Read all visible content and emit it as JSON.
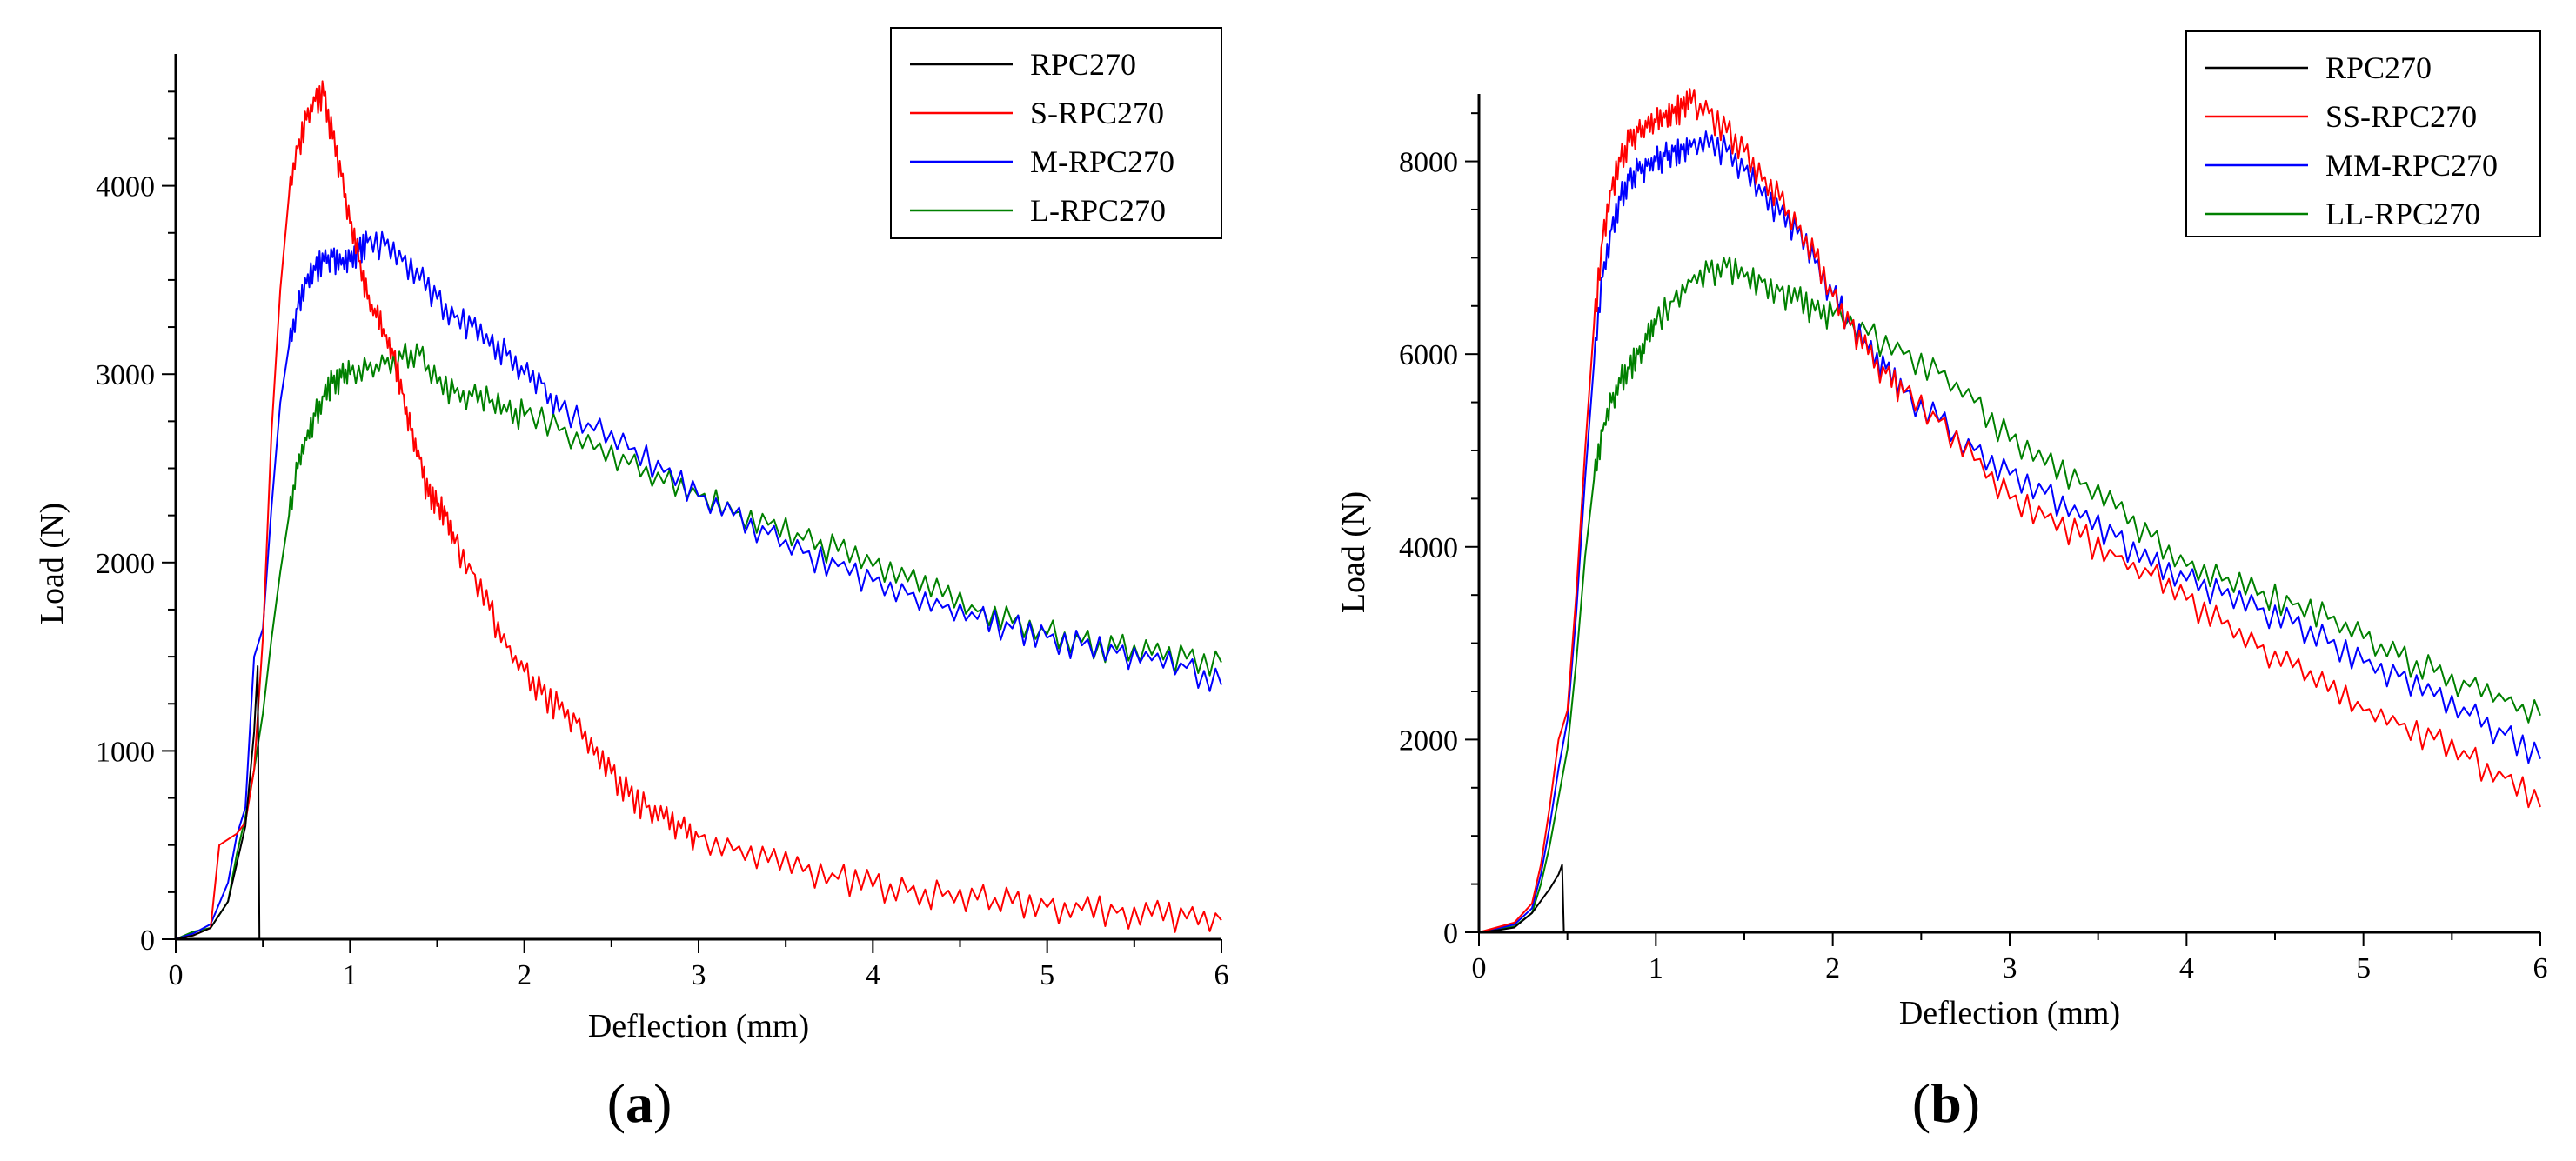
{
  "figure": {
    "panels": [
      "a",
      "b"
    ]
  },
  "chart_data": [
    {
      "type": "line",
      "panel_label": "a",
      "xlabel": "Deflection (mm)",
      "ylabel": "Load (N)",
      "xlim": [
        0,
        6
      ],
      "ylim": [
        0,
        4700
      ],
      "xticks": [
        0,
        1,
        2,
        3,
        4,
        5,
        6
      ],
      "yticks": [
        0,
        1000,
        2000,
        3000,
        4000
      ],
      "grid": false,
      "legend_position": "top-right",
      "series": [
        {
          "name": "RPC270",
          "color": "#000000",
          "x": [
            0,
            0.1,
            0.2,
            0.3,
            0.4,
            0.45,
            0.47,
            0.48,
            0.5
          ],
          "y": [
            0,
            20,
            60,
            200,
            600,
            1100,
            1450,
            0,
            0
          ]
        },
        {
          "name": "S-RPC270",
          "color": "#ff0000",
          "x": [
            0,
            0.1,
            0.2,
            0.25,
            0.3,
            0.35,
            0.4,
            0.45,
            0.5,
            0.55,
            0.6,
            0.65,
            0.7,
            0.75,
            0.8,
            0.85,
            0.9,
            0.95,
            1.0,
            1.05,
            1.1,
            1.15,
            1.2,
            1.25,
            1.3,
            1.35,
            1.4,
            1.45,
            1.5,
            1.55,
            1.6,
            1.7,
            1.8,
            1.9,
            2.0,
            2.1,
            2.2,
            2.3,
            2.4,
            2.5,
            2.6,
            2.7,
            2.8,
            2.9,
            3.0,
            3.2,
            3.4,
            3.6,
            3.8,
            4.0,
            4.2,
            4.4,
            4.6,
            4.8,
            5.0,
            5.2,
            5.4,
            5.6,
            5.8,
            6.0
          ],
          "y": [
            0,
            20,
            60,
            500,
            530,
            560,
            620,
            900,
            1600,
            2700,
            3450,
            3950,
            4200,
            4350,
            4450,
            4480,
            4250,
            4050,
            3800,
            3600,
            3400,
            3300,
            3200,
            3100,
            2900,
            2700,
            2550,
            2350,
            2300,
            2250,
            2100,
            1950,
            1750,
            1550,
            1420,
            1300,
            1220,
            1150,
            980,
            880,
            760,
            700,
            640,
            590,
            540,
            470,
            410,
            360,
            320,
            280,
            250,
            230,
            210,
            190,
            170,
            155,
            140,
            125,
            110,
            100
          ]
        },
        {
          "name": "M-RPC270",
          "color": "#0000ff",
          "x": [
            0,
            0.1,
            0.2,
            0.3,
            0.35,
            0.4,
            0.45,
            0.5,
            0.55,
            0.6,
            0.65,
            0.7,
            0.75,
            0.8,
            0.85,
            0.9,
            0.95,
            1.0,
            1.05,
            1.1,
            1.2,
            1.3,
            1.4,
            1.5,
            1.6,
            1.7,
            1.8,
            1.9,
            2.0,
            2.1,
            2.2,
            2.4,
            2.6,
            2.8,
            3.0,
            3.2,
            3.4,
            3.6,
            3.8,
            4.0,
            4.2,
            4.4,
            4.6,
            4.8,
            5.0,
            5.2,
            5.4,
            5.6,
            5.8,
            6.0
          ],
          "y": [
            0,
            30,
            80,
            300,
            550,
            700,
            1500,
            1650,
            2300,
            2850,
            3150,
            3350,
            3480,
            3550,
            3600,
            3620,
            3580,
            3600,
            3650,
            3700,
            3680,
            3600,
            3500,
            3400,
            3300,
            3250,
            3150,
            3100,
            3000,
            2950,
            2800,
            2700,
            2600,
            2480,
            2350,
            2250,
            2150,
            2050,
            1980,
            1900,
            1830,
            1760,
            1700,
            1650,
            1600,
            1560,
            1520,
            1480,
            1440,
            1350
          ]
        },
        {
          "name": "L-RPC270",
          "color": "#008000",
          "x": [
            0,
            0.1,
            0.2,
            0.3,
            0.35,
            0.4,
            0.45,
            0.5,
            0.55,
            0.6,
            0.65,
            0.7,
            0.75,
            0.8,
            0.85,
            0.9,
            0.95,
            1.0,
            1.1,
            1.2,
            1.3,
            1.4,
            1.5,
            1.6,
            1.7,
            1.8,
            1.9,
            2.0,
            2.2,
            2.4,
            2.6,
            2.8,
            3.0,
            3.2,
            3.4,
            3.6,
            3.8,
            4.0,
            4.2,
            4.4,
            4.6,
            4.8,
            5.0,
            5.2,
            5.4,
            5.6,
            5.8,
            6.0
          ],
          "y": [
            0,
            40,
            60,
            200,
            450,
            650,
            900,
            1200,
            1600,
            1950,
            2250,
            2500,
            2650,
            2780,
            2880,
            2950,
            2980,
            3000,
            3020,
            3050,
            3080,
            3100,
            2950,
            2900,
            2880,
            2850,
            2800,
            2780,
            2700,
            2600,
            2520,
            2420,
            2350,
            2260,
            2200,
            2120,
            2060,
            1980,
            1900,
            1820,
            1740,
            1680,
            1620,
            1580,
            1540,
            1510,
            1490,
            1470
          ]
        }
      ]
    },
    {
      "type": "line",
      "panel_label": "b",
      "xlabel": "Deflection (mm)",
      "ylabel": "Load (N)",
      "xlim": [
        0,
        6
      ],
      "ylim": [
        0,
        8700
      ],
      "xticks": [
        0,
        1,
        2,
        3,
        4,
        5,
        6
      ],
      "yticks": [
        0,
        2000,
        4000,
        6000,
        8000
      ],
      "grid": false,
      "legend_position": "top-right",
      "series": [
        {
          "name": "RPC270",
          "color": "#000000",
          "x": [
            0,
            0.1,
            0.2,
            0.3,
            0.4,
            0.45,
            0.47,
            0.48,
            0.5
          ],
          "y": [
            0,
            20,
            50,
            200,
            450,
            600,
            700,
            0,
            0
          ]
        },
        {
          "name": "SS-RPC270",
          "color": "#ff0000",
          "x": [
            0,
            0.1,
            0.2,
            0.3,
            0.35,
            0.4,
            0.45,
            0.5,
            0.55,
            0.6,
            0.65,
            0.7,
            0.75,
            0.8,
            0.85,
            0.9,
            0.95,
            1.0,
            1.05,
            1.1,
            1.15,
            1.2,
            1.3,
            1.4,
            1.5,
            1.6,
            1.7,
            1.8,
            1.9,
            2.0,
            2.1,
            2.2,
            2.3,
            2.4,
            2.6,
            2.8,
            3.0,
            3.2,
            3.4,
            3.6,
            3.8,
            4.0,
            4.2,
            4.4,
            4.6,
            4.8,
            5.0,
            5.2,
            5.4,
            5.6,
            5.8,
            6.0
          ],
          "y": [
            0,
            50,
            100,
            300,
            700,
            1300,
            2000,
            2300,
            3500,
            5000,
            6300,
            7200,
            7700,
            8000,
            8200,
            8300,
            8350,
            8400,
            8450,
            8500,
            8550,
            8600,
            8500,
            8300,
            8100,
            7800,
            7600,
            7300,
            7000,
            6600,
            6300,
            6000,
            5800,
            5600,
            5300,
            4900,
            4500,
            4300,
            4100,
            3900,
            3700,
            3450,
            3200,
            2950,
            2750,
            2500,
            2300,
            2150,
            2000,
            1800,
            1600,
            1300
          ]
        },
        {
          "name": "MM-RPC270",
          "color": "#0000ff",
          "x": [
            0,
            0.1,
            0.2,
            0.3,
            0.35,
            0.4,
            0.45,
            0.5,
            0.55,
            0.6,
            0.65,
            0.7,
            0.75,
            0.8,
            0.85,
            0.9,
            0.95,
            1.0,
            1.05,
            1.1,
            1.15,
            1.2,
            1.3,
            1.4,
            1.5,
            1.6,
            1.7,
            1.8,
            1.9,
            2.0,
            2.1,
            2.2,
            2.3,
            2.4,
            2.6,
            2.8,
            3.0,
            3.2,
            3.4,
            3.6,
            3.8,
            4.0,
            4.2,
            4.4,
            4.6,
            4.8,
            5.0,
            5.2,
            5.4,
            5.6,
            5.8,
            6.0
          ],
          "y": [
            0,
            40,
            80,
            250,
            600,
            1100,
            1700,
            2200,
            3300,
            4700,
            5900,
            6800,
            7300,
            7600,
            7800,
            7900,
            7950,
            8000,
            8050,
            8100,
            8120,
            8150,
            8150,
            8100,
            7900,
            7650,
            7450,
            7250,
            6950,
            6600,
            6300,
            6050,
            5850,
            5600,
            5300,
            5000,
            4750,
            4550,
            4300,
            4100,
            3800,
            3650,
            3500,
            3350,
            3200,
            3000,
            2800,
            2650,
            2450,
            2250,
            2050,
            1800
          ]
        },
        {
          "name": "LL-RPC270",
          "color": "#008000",
          "x": [
            0,
            0.1,
            0.2,
            0.3,
            0.35,
            0.4,
            0.45,
            0.5,
            0.55,
            0.6,
            0.65,
            0.7,
            0.75,
            0.8,
            0.85,
            0.9,
            0.95,
            1.0,
            1.1,
            1.2,
            1.3,
            1.4,
            1.5,
            1.6,
            1.7,
            1.8,
            1.9,
            2.0,
            2.2,
            2.4,
            2.6,
            2.8,
            3.0,
            3.2,
            3.4,
            3.6,
            3.8,
            4.0,
            4.2,
            4.4,
            4.6,
            4.8,
            5.0,
            5.2,
            5.4,
            5.6,
            5.8,
            6.0
          ],
          "y": [
            0,
            30,
            60,
            200,
            500,
            900,
            1400,
            1900,
            2800,
            3900,
            4700,
            5200,
            5500,
            5700,
            5850,
            6000,
            6150,
            6300,
            6550,
            6750,
            6850,
            6900,
            6800,
            6750,
            6650,
            6550,
            6450,
            6400,
            6200,
            6000,
            5800,
            5500,
            5100,
            4850,
            4650,
            4400,
            4100,
            3800,
            3650,
            3500,
            3400,
            3250,
            3050,
            2850,
            2700,
            2550,
            2400,
            2250
          ]
        }
      ]
    }
  ]
}
